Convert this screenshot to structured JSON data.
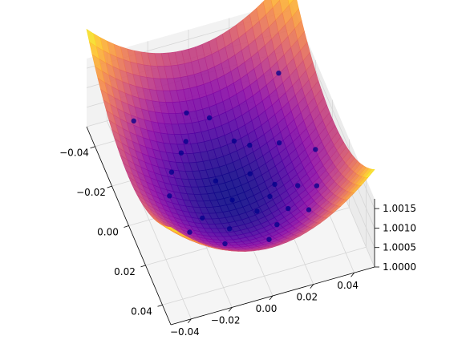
{
  "chart_data": {
    "type": "surface3d",
    "surface": {
      "function": "cosh-bowl",
      "colormap": "plasma"
    },
    "axes": {
      "x": {
        "ticks": [
          -0.04,
          -0.02,
          0.0,
          0.02,
          0.04
        ],
        "tick_labels": [
          "−0.04",
          "−0.02",
          "0.00",
          "0.02",
          "0.04"
        ],
        "lim": [
          -0.05,
          0.05
        ]
      },
      "y": {
        "ticks": [
          -0.04,
          -0.02,
          0.0,
          0.02,
          0.04
        ],
        "tick_labels": [
          "−0.04",
          "−0.02",
          "0.00",
          "0.02",
          "0.04"
        ],
        "lim": [
          -0.05,
          0.05
        ]
      },
      "z": {
        "ticks": [
          1.0,
          1.0005,
          1.001,
          1.0015
        ],
        "tick_labels": [
          "1.0000",
          "1.0005",
          "1.0010",
          "1.0015"
        ],
        "lim": [
          1.0,
          1.00175
        ]
      }
    },
    "scatter_points": {
      "color": "#00008b",
      "points": [
        [
          -0.008,
          -0.033
        ],
        [
          0.002,
          -0.03
        ],
        [
          -0.012,
          -0.024
        ],
        [
          -0.016,
          -0.02
        ],
        [
          0.016,
          -0.016
        ],
        [
          0.028,
          -0.01
        ],
        [
          -0.024,
          -0.012
        ],
        [
          -0.004,
          -0.008
        ],
        [
          0.012,
          -0.006
        ],
        [
          0.02,
          0.004
        ],
        [
          -0.03,
          0.0
        ],
        [
          0.0,
          0.002
        ],
        [
          0.016,
          0.008
        ],
        [
          -0.018,
          0.01
        ],
        [
          0.008,
          0.012
        ],
        [
          0.028,
          0.012
        ],
        [
          -0.008,
          0.018
        ],
        [
          0.02,
          0.02
        ],
        [
          0.034,
          0.02
        ],
        [
          -0.03,
          0.024
        ],
        [
          0.012,
          0.026
        ],
        [
          -0.016,
          0.032
        ],
        [
          0.004,
          0.036
        ],
        [
          0.026,
          0.03
        ],
        [
          0.04,
          0.004
        ],
        [
          -0.036,
          -0.028
        ],
        [
          0.036,
          -0.03
        ],
        [
          0.01,
          -0.02
        ]
      ]
    },
    "grid": true
  }
}
